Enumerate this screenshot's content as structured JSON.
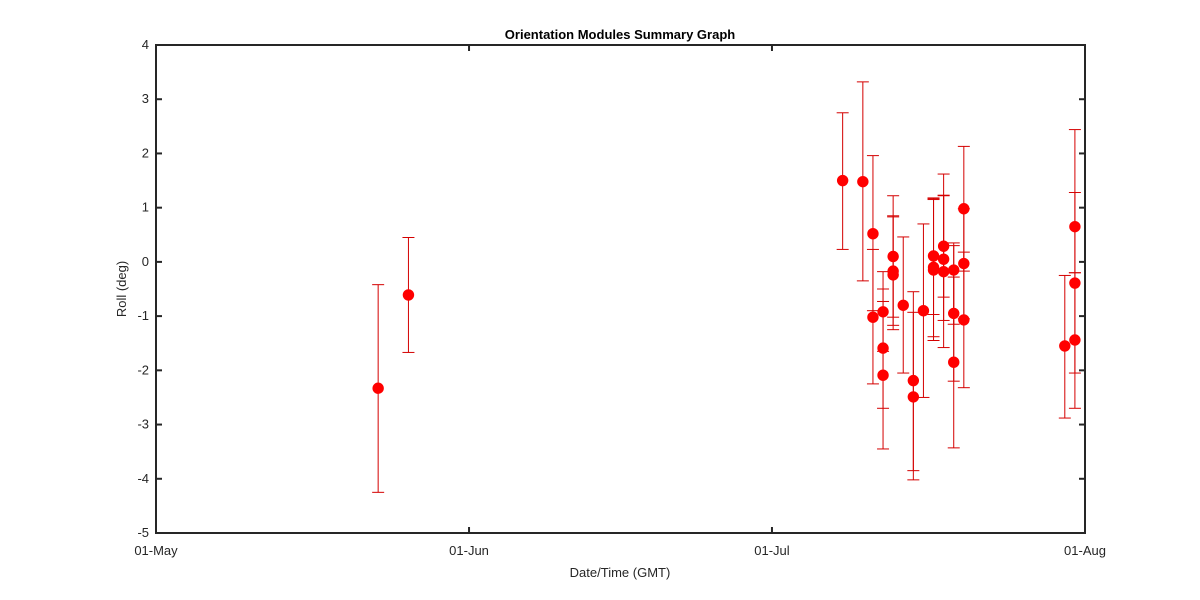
{
  "chart_data": {
    "type": "scatter",
    "title": "Orientation Modules Summary Graph",
    "xlabel": "Date/Time (GMT)",
    "ylabel": "Roll (deg)",
    "xlim": [
      "2023-05-01",
      "2023-08-01"
    ],
    "ylim": [
      -5,
      4
    ],
    "x_ticks": [
      {
        "date": "2023-05-01",
        "label": "01-May"
      },
      {
        "date": "2023-06-01",
        "label": "01-Jun"
      },
      {
        "date": "2023-07-01",
        "label": "01-Jul"
      },
      {
        "date": "2023-08-01",
        "label": "01-Aug"
      }
    ],
    "y_ticks": [
      -5,
      -4,
      -3,
      -2,
      -1,
      0,
      1,
      2,
      3,
      4
    ],
    "grid": false,
    "color": "#ff0000",
    "errorbar_color": "#d40000",
    "points": [
      {
        "x": "2023-05-23",
        "y": -2.33,
        "lo": -4.25,
        "hi": -0.42
      },
      {
        "x": "2023-05-26",
        "y": -0.61,
        "lo": -1.67,
        "hi": 0.45
      },
      {
        "x": "2023-07-08",
        "y": 1.5,
        "lo": 0.23,
        "hi": 2.75
      },
      {
        "x": "2023-07-10",
        "y": 1.48,
        "lo": -0.35,
        "hi": 3.32
      },
      {
        "x": "2023-07-11",
        "y": 0.52,
        "lo": -0.9,
        "hi": 1.96
      },
      {
        "x": "2023-07-11",
        "y": -1.02,
        "lo": -2.25,
        "hi": 0.23
      },
      {
        "x": "2023-07-12",
        "y": -0.92,
        "lo": -1.65,
        "hi": -0.18
      },
      {
        "x": "2023-07-12",
        "y": -1.59,
        "lo": -2.7,
        "hi": -0.5
      },
      {
        "x": "2023-07-12",
        "y": -2.09,
        "lo": -3.45,
        "hi": -0.73
      },
      {
        "x": "2023-07-13",
        "y": 0.1,
        "lo": -1.02,
        "hi": 1.22
      },
      {
        "x": "2023-07-13",
        "y": -0.17,
        "lo": -1.17,
        "hi": 0.83
      },
      {
        "x": "2023-07-13",
        "y": -0.24,
        "lo": -1.25,
        "hi": 0.85
      },
      {
        "x": "2023-07-14",
        "y": -0.8,
        "lo": -2.05,
        "hi": 0.46
      },
      {
        "x": "2023-07-15",
        "y": -2.19,
        "lo": -3.85,
        "hi": -0.55
      },
      {
        "x": "2023-07-15",
        "y": -2.49,
        "lo": -4.02,
        "hi": -0.93
      },
      {
        "x": "2023-07-16",
        "y": -0.9,
        "lo": -2.5,
        "hi": 0.7
      },
      {
        "x": "2023-07-17",
        "y": 0.11,
        "lo": -0.97,
        "hi": 1.18
      },
      {
        "x": "2023-07-17",
        "y": -0.1,
        "lo": -1.38,
        "hi": 1.17
      },
      {
        "x": "2023-07-17",
        "y": -0.15,
        "lo": -1.45,
        "hi": 1.15
      },
      {
        "x": "2023-07-18",
        "y": 0.29,
        "lo": -0.65,
        "hi": 1.23
      },
      {
        "x": "2023-07-18",
        "y": 0.05,
        "lo": -1.08,
        "hi": 1.62
      },
      {
        "x": "2023-07-18",
        "y": -0.18,
        "lo": -1.58,
        "hi": 1.22
      },
      {
        "x": "2023-07-19",
        "y": -0.15,
        "lo": -1.15,
        "hi": 0.35
      },
      {
        "x": "2023-07-19",
        "y": -0.95,
        "lo": -2.2,
        "hi": 0.3
      },
      {
        "x": "2023-07-19",
        "y": -1.85,
        "lo": -3.43,
        "hi": -0.28
      },
      {
        "x": "2023-07-20",
        "y": 0.98,
        "lo": -0.17,
        "hi": 2.13
      },
      {
        "x": "2023-07-20",
        "y": -0.03,
        "lo": -1.05,
        "hi": 0.98
      },
      {
        "x": "2023-07-20",
        "y": -1.07,
        "lo": -2.32,
        "hi": 0.18
      },
      {
        "x": "2023-07-30",
        "y": -1.55,
        "lo": -2.88,
        "hi": -0.25
      },
      {
        "x": "2023-07-31",
        "y": 0.65,
        "lo": -0.2,
        "hi": 2.44
      },
      {
        "x": "2023-07-31",
        "y": -0.39,
        "lo": -2.05,
        "hi": 1.28
      },
      {
        "x": "2023-07-31",
        "y": -1.44,
        "lo": -2.7,
        "hi": -0.2
      }
    ]
  }
}
